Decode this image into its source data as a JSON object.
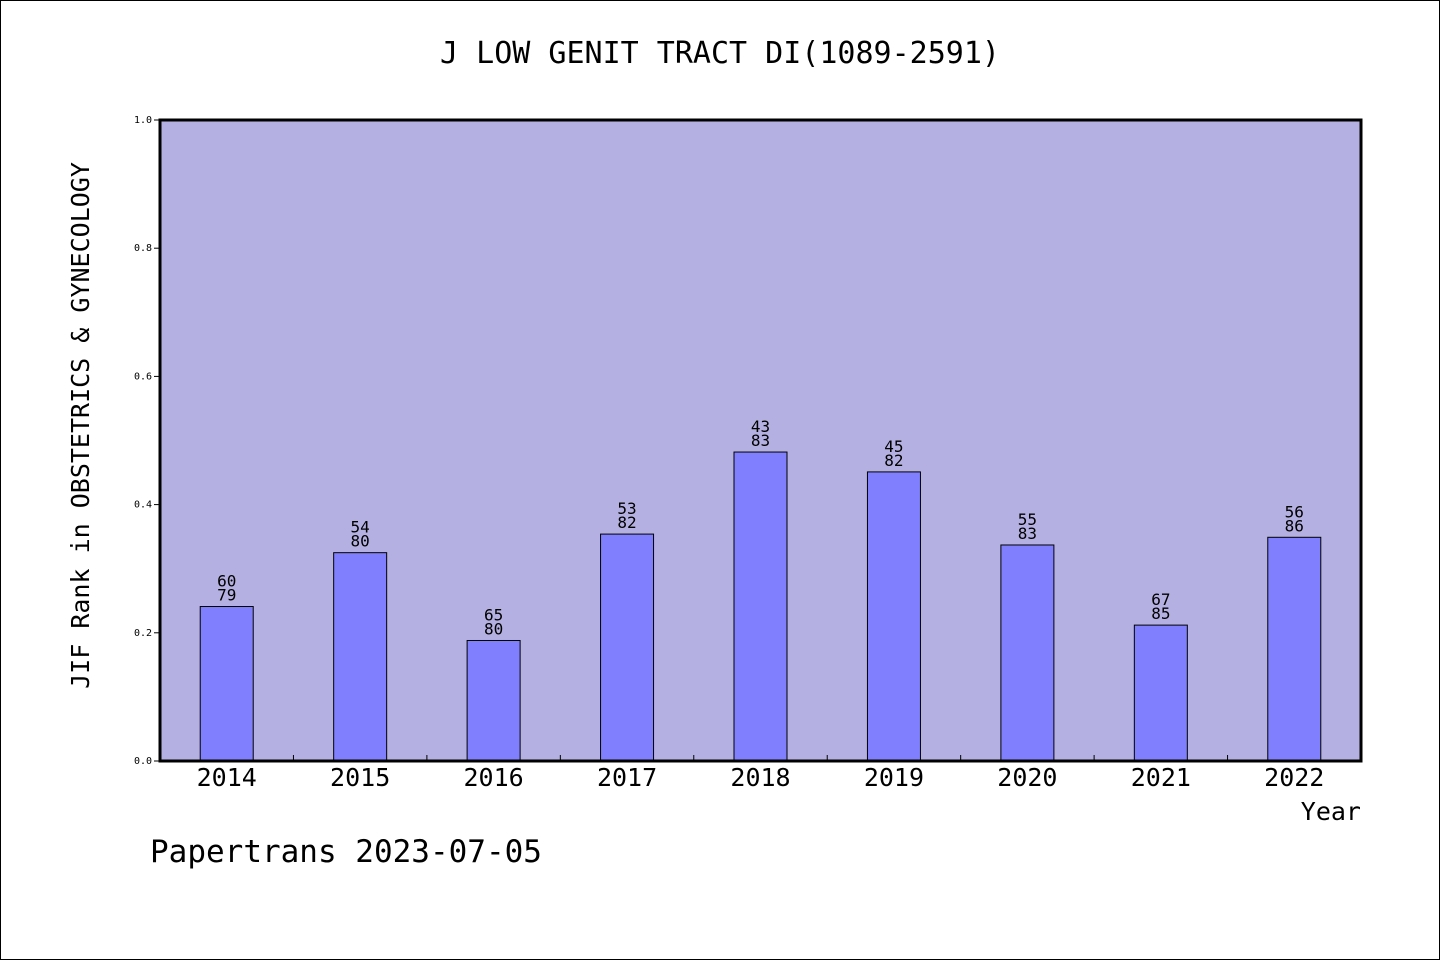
{
  "chart_data": {
    "type": "bar",
    "title": "J LOW GENIT TRACT DI(1089-2591)",
    "xlabel": "Year",
    "ylabel": "JIF Rank in OBSTETRICS & GYNECOLOGY",
    "ylim": [
      0,
      1.0
    ],
    "yticks": [
      "0.0",
      "0.2",
      "0.4",
      "0.6",
      "0.8",
      "1.0"
    ],
    "grid": false,
    "categories": [
      "2014",
      "2015",
      "2016",
      "2017",
      "2018",
      "2019",
      "2020",
      "2021",
      "2022"
    ],
    "values": [
      0.241,
      0.325,
      0.188,
      0.354,
      0.482,
      0.451,
      0.337,
      0.212,
      0.349
    ],
    "rank_labels": [
      [
        "60",
        "79"
      ],
      [
        "54",
        "80"
      ],
      [
        "65",
        "80"
      ],
      [
        "53",
        "82"
      ],
      [
        "43",
        "83"
      ],
      [
        "45",
        "82"
      ],
      [
        "55",
        "83"
      ],
      [
        "67",
        "85"
      ],
      [
        "56",
        "86"
      ]
    ],
    "colors": {
      "plot_background": "#b5b0e2",
      "bar_fill": "#8080ff",
      "bar_stroke": "#000000"
    }
  },
  "footer": {
    "note": "Papertrans 2023-07-05"
  }
}
